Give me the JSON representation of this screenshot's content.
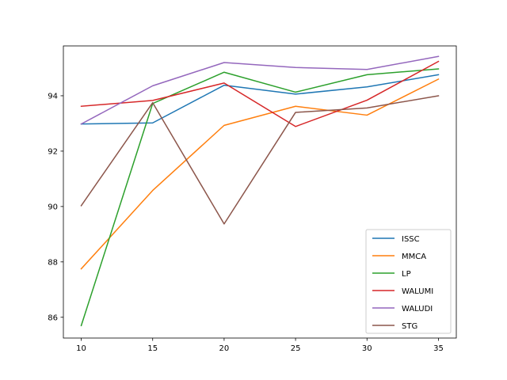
{
  "chart_data": {
    "type": "line",
    "title": "",
    "xlabel": "",
    "ylabel": "",
    "x": [
      10,
      15,
      20,
      25,
      30,
      35
    ],
    "xlim": [
      8.75,
      36.25
    ],
    "ylim": [
      85.25,
      95.8
    ],
    "xticks": [
      10,
      15,
      20,
      25,
      30,
      35
    ],
    "yticks": [
      86,
      88,
      90,
      92,
      94
    ],
    "grid": false,
    "legend_position": "lower right",
    "series": [
      {
        "name": "ISSC",
        "color": "#1f77b4",
        "values": [
          92.98,
          93.02,
          94.38,
          94.06,
          94.32,
          94.76
        ]
      },
      {
        "name": "MMCA",
        "color": "#ff7f0e",
        "values": [
          87.75,
          90.58,
          92.93,
          93.62,
          93.3,
          94.6
        ]
      },
      {
        "name": "LP",
        "color": "#2ca02c",
        "values": [
          85.7,
          93.72,
          94.85,
          94.13,
          94.76,
          94.97
        ]
      },
      {
        "name": "WALUMI",
        "color": "#d62728",
        "values": [
          93.62,
          93.83,
          94.46,
          92.89,
          93.84,
          95.24
        ]
      },
      {
        "name": "WALUDI",
        "color": "#9467bd",
        "values": [
          92.98,
          94.36,
          95.2,
          95.02,
          94.95,
          95.42
        ]
      },
      {
        "name": "STG",
        "color": "#8c564b",
        "values": [
          90.03,
          93.75,
          89.37,
          93.4,
          93.56,
          94.0
        ]
      }
    ]
  }
}
